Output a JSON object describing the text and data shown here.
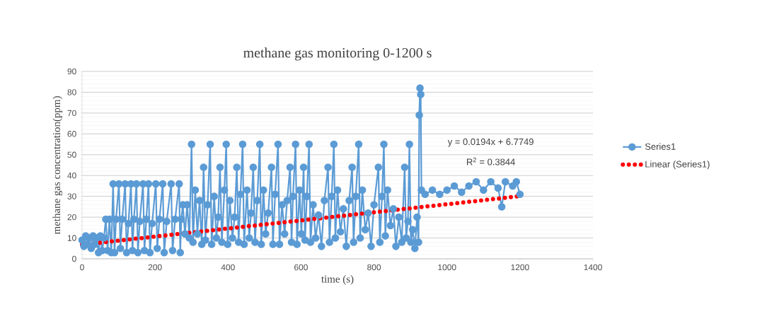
{
  "chart_data": {
    "type": "line",
    "title": "methane gas monitoring 0-1200 s",
    "xlabel": "time (s)",
    "ylabel": "methane gas concentration(ppm)",
    "xlim": [
      0,
      1400
    ],
    "xticks": [
      0,
      200,
      400,
      600,
      800,
      1000,
      1200,
      1400
    ],
    "ylim": [
      0,
      90
    ],
    "yticks": [
      0,
      10,
      20,
      30,
      40,
      50,
      60,
      70,
      80,
      90
    ],
    "grid": "y",
    "legend": "right",
    "annotations": [
      "y = 0.0194x + 6.7749",
      "R$^{2}$ = 0.3844"
    ],
    "series": [
      {
        "name": "Series1",
        "color": "#5b9bd5",
        "marker": "circle",
        "line_style": "solid",
        "x": [
          0,
          5,
          10,
          15,
          20,
          25,
          30,
          35,
          40,
          45,
          50,
          55,
          60,
          65,
          70,
          75,
          80,
          85,
          89,
          93,
          101,
          105,
          110,
          118,
          122,
          127,
          134,
          138,
          142,
          149,
          153,
          158,
          167,
          171,
          176,
          182,
          186,
          192,
          202,
          206,
          212,
          221,
          225,
          232,
          244,
          248,
          255,
          266,
          269,
          272,
          276,
          282,
          288,
          294,
          300,
          304,
          310,
          316,
          322,
          328,
          333,
          338,
          344,
          351,
          355,
          362,
          368,
          373,
          378,
          383,
          390,
          395,
          399,
          405,
          412,
          418,
          424,
          429,
          434,
          440,
          444,
          452,
          458,
          463,
          469,
          474,
          480,
          487,
          491,
          497,
          503,
          510,
          519,
          523,
          529,
          537,
          541,
          548,
          555,
          562,
          570,
          574,
          578,
          585,
          589,
          596,
          601,
          607,
          611,
          616,
          622,
          626,
          633,
          640,
          648,
          656,
          664,
          674,
          678,
          684,
          690,
          694,
          700,
          708,
          716,
          724,
          732,
          740,
          744,
          750,
          758,
          762,
          768,
          776,
          784,
          792,
          800,
          812,
          816,
          822,
          827,
          831,
          837,
          845,
          853,
          860,
          868,
          876,
          884,
          888,
          893,
          897,
          901,
          906,
          912,
          918,
          922,
          924,
          926,
          928,
          930,
          940,
          960,
          980,
          1000,
          1020,
          1040,
          1060,
          1080,
          1100,
          1120,
          1140,
          1150,
          1160,
          1180,
          1190,
          1200
        ],
        "values": [
          9,
          6,
          11,
          7,
          10,
          5,
          11,
          7,
          10,
          3,
          11,
          4,
          10,
          19,
          4,
          19,
          3,
          36,
          3,
          19,
          36,
          5,
          19,
          36,
          3,
          17,
          36,
          4,
          19,
          36,
          3,
          18,
          36,
          4,
          19,
          36,
          3,
          17,
          36,
          5,
          19,
          36,
          3,
          18,
          36,
          4,
          19,
          36,
          3,
          19,
          26,
          12,
          26,
          10,
          55,
          8,
          33,
          12,
          28,
          7,
          44,
          9,
          26,
          55,
          7,
          30,
          10,
          20,
          44,
          8,
          33,
          55,
          7,
          28,
          10,
          20,
          44,
          8,
          31,
          55,
          7,
          33,
          10,
          22,
          44,
          8,
          28,
          55,
          7,
          33,
          12,
          22,
          44,
          7,
          31,
          55,
          7,
          26,
          12,
          28,
          44,
          8,
          30,
          55,
          7,
          33,
          12,
          44,
          9,
          30,
          55,
          8,
          26,
          10,
          21,
          6,
          28,
          44,
          8,
          30,
          55,
          10,
          33,
          13,
          24,
          6,
          28,
          44,
          8,
          30,
          55,
          10,
          33,
          14,
          22,
          6,
          26,
          44,
          8,
          30,
          55,
          11,
          33,
          16,
          24,
          6,
          20,
          8,
          44,
          10,
          18,
          55,
          8,
          14,
          5,
          20,
          8,
          69,
          82,
          79,
          33,
          31,
          33,
          31,
          33,
          35,
          32,
          35,
          37,
          33,
          37,
          34,
          25,
          37,
          35,
          37,
          31
        ]
      },
      {
        "name": "Linear (Series1)",
        "color": "#ff0000",
        "marker": "none",
        "line_style": "dotted",
        "x": [
          0,
          1200
        ],
        "values": [
          6.8,
          30.1
        ]
      }
    ]
  }
}
